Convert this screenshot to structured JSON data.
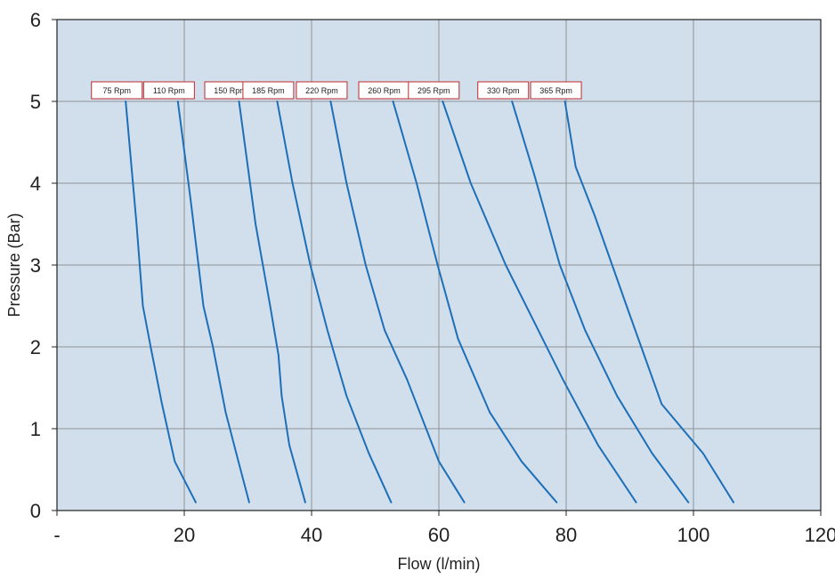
{
  "chart_data": {
    "type": "line",
    "xlabel": "Flow (l/min)",
    "ylabel": "Pressure (Bar)",
    "xlim": [
      0,
      120
    ],
    "ylim": [
      0,
      6
    ],
    "x_ticks": [
      {
        "value": 0,
        "label": "-"
      },
      {
        "value": 20,
        "label": "20"
      },
      {
        "value": 40,
        "label": "40"
      },
      {
        "value": 60,
        "label": "60"
      },
      {
        "value": 80,
        "label": "80"
      },
      {
        "value": 100,
        "label": "100"
      },
      {
        "value": 120,
        "label": "120"
      }
    ],
    "y_ticks": [
      {
        "value": 0,
        "label": "0"
      },
      {
        "value": 1,
        "label": "1"
      },
      {
        "value": 2,
        "label": "2"
      },
      {
        "value": 3,
        "label": "3"
      },
      {
        "value": 4,
        "label": "4"
      },
      {
        "value": 5,
        "label": "5"
      },
      {
        "value": 6,
        "label": "6"
      }
    ],
    "grid": true,
    "colors": {
      "plot_background": "#d1dfec",
      "grid": "#8e9294",
      "line": "#1d6fb8",
      "label_border": "#c0282d"
    },
    "series": [
      {
        "name": "75 Rpm",
        "points": [
          [
            10.8,
            5.0
          ],
          [
            12.5,
            3.5
          ],
          [
            13.5,
            2.5
          ],
          [
            14.8,
            1.97
          ],
          [
            16.5,
            1.3
          ],
          [
            18.5,
            0.6
          ],
          [
            21.8,
            0.1
          ]
        ]
      },
      {
        "name": "110 Rpm",
        "points": [
          [
            19.0,
            5.0
          ],
          [
            21.0,
            3.8
          ],
          [
            23.0,
            2.5
          ],
          [
            24.5,
            2.0
          ],
          [
            26.5,
            1.2
          ],
          [
            28.5,
            0.6
          ],
          [
            30.2,
            0.1
          ]
        ]
      },
      {
        "name": "150 Rpm",
        "points": [
          [
            28.6,
            5.0
          ],
          [
            31.2,
            3.5
          ],
          [
            33.5,
            2.5
          ],
          [
            34.8,
            1.9
          ],
          [
            35.3,
            1.4
          ],
          [
            36.5,
            0.8
          ],
          [
            39.0,
            0.1
          ]
        ]
      },
      {
        "name": "185 Rpm",
        "points": [
          [
            34.6,
            5.0
          ],
          [
            37.0,
            4.0
          ],
          [
            39.8,
            3.0
          ],
          [
            42.5,
            2.2
          ],
          [
            45.5,
            1.4
          ],
          [
            49.0,
            0.7
          ],
          [
            52.5,
            0.1
          ]
        ]
      },
      {
        "name": "220 Rpm",
        "points": [
          [
            43.0,
            5.0
          ],
          [
            45.5,
            4.0
          ],
          [
            48.5,
            3.0
          ],
          [
            51.5,
            2.2
          ],
          [
            55.0,
            1.6
          ],
          [
            60.0,
            0.6
          ],
          [
            64.0,
            0.1
          ]
        ]
      },
      {
        "name": "260 Rpm",
        "points": [
          [
            52.8,
            5.0
          ],
          [
            56.5,
            4.0
          ],
          [
            59.8,
            3.0
          ],
          [
            63.0,
            2.1
          ],
          [
            68.0,
            1.2
          ],
          [
            73.0,
            0.6
          ],
          [
            78.5,
            0.1
          ]
        ]
      },
      {
        "name": "295 Rpm",
        "points": [
          [
            60.6,
            5.0
          ],
          [
            65.0,
            4.0
          ],
          [
            70.5,
            3.0
          ],
          [
            75.0,
            2.3
          ],
          [
            79.5,
            1.6
          ],
          [
            85.0,
            0.8
          ],
          [
            91.0,
            0.1
          ]
        ]
      },
      {
        "name": "330 Rpm",
        "points": [
          [
            71.5,
            5.0
          ],
          [
            75.0,
            4.1
          ],
          [
            79.0,
            3.0
          ],
          [
            83.0,
            2.2
          ],
          [
            88.0,
            1.4
          ],
          [
            93.5,
            0.7
          ],
          [
            99.2,
            0.1
          ]
        ]
      },
      {
        "name": "365 Rpm",
        "points": [
          [
            79.8,
            5.0
          ],
          [
            81.5,
            4.2
          ],
          [
            84.5,
            3.6
          ],
          [
            89.5,
            2.5
          ],
          [
            95.0,
            1.3
          ],
          [
            101.5,
            0.7
          ],
          [
            106.3,
            0.1
          ]
        ]
      }
    ]
  }
}
